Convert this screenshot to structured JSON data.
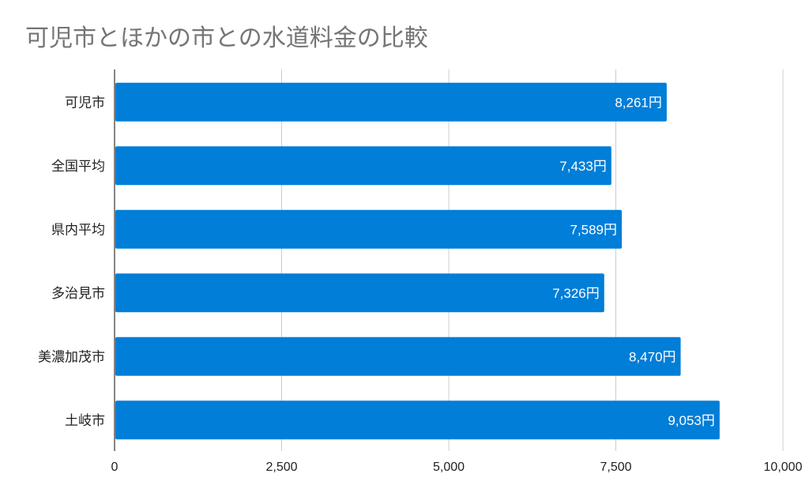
{
  "chart_data": {
    "type": "bar",
    "orientation": "horizontal",
    "title": "可児市とほかの市との水道料金の比較",
    "categories": [
      "可児市",
      "全国平均",
      "県内平均",
      "多治見市",
      "美濃加茂市",
      "土岐市"
    ],
    "values": [
      8261,
      7433,
      7589,
      7326,
      8470,
      9053
    ],
    "data_labels": [
      "8,261円",
      "7,433円",
      "7,589円",
      "7,326円",
      "8,470円",
      "9,053円"
    ],
    "xlim": [
      0,
      10000
    ],
    "x_ticks": [
      0,
      2500,
      5000,
      7500,
      10000
    ],
    "x_tick_labels": [
      "0",
      "2,500",
      "5,000",
      "7,500",
      "10,000"
    ],
    "grid": true,
    "colors": {
      "bar": "#007ed8",
      "grid": "#cccccc",
      "axis": "#333333",
      "title": "#757575"
    }
  }
}
